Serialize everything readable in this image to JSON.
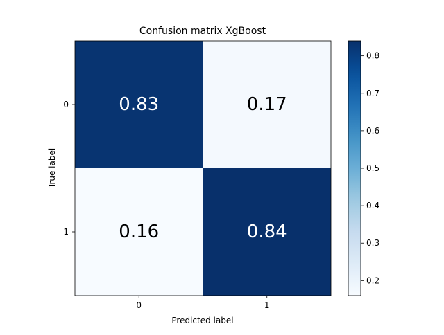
{
  "chart_data": {
    "type": "heatmap",
    "title": "Confusion matrix XgBoost",
    "xlabel": "Predicted label",
    "ylabel": "True label",
    "x_categories": [
      "0",
      "1"
    ],
    "y_categories": [
      "0",
      "1"
    ],
    "values": [
      [
        0.83,
        0.17
      ],
      [
        0.16,
        0.84
      ]
    ],
    "cell_labels": [
      [
        "0.83",
        "0.17"
      ],
      [
        "0.16",
        "0.84"
      ]
    ],
    "colormap": "Blues",
    "color_low": "#f7fbff",
    "color_high": "#08306b",
    "colorbar": {
      "range": [
        0.16,
        0.84
      ],
      "ticks": [
        0.2,
        0.3,
        0.4,
        0.5,
        0.6,
        0.7,
        0.8
      ],
      "tick_labels": [
        "0.2",
        "0.3",
        "0.4",
        "0.5",
        "0.6",
        "0.7",
        "0.8"
      ]
    },
    "grid": false
  }
}
